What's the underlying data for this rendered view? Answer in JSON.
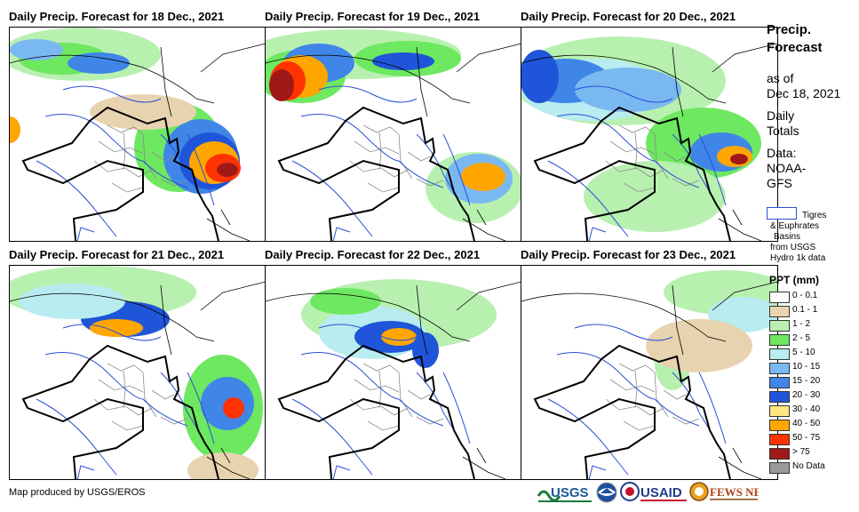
{
  "panels": [
    {
      "title": "Daily Precip. Forecast for 18 Dec., 2021"
    },
    {
      "title": "Daily Precip. Forecast for 19 Dec., 2021"
    },
    {
      "title": "Daily Precip. Forecast for 20 Dec., 2021"
    },
    {
      "title": "Daily Precip. Forecast for 21 Dec., 2021"
    },
    {
      "title": "Daily Precip. Forecast for 22 Dec., 2021"
    },
    {
      "title": "Daily Precip. Forecast for 23 Dec., 2021"
    }
  ],
  "sidebar": {
    "title_line1": "Precip.",
    "title_line2": "Forecast",
    "asof_line1": "as of",
    "asof_line2": "Dec 18, 2021",
    "totals_line1": "Daily",
    "totals_line2": "Totals",
    "data_line1": "Data:",
    "data_line2": "NOAA-",
    "data_line3": "GFS"
  },
  "basin_legend": {
    "line1": "Tigres",
    "line2": "& Euphrates",
    "line3": "Basins",
    "line4": "from USGS",
    "line5": "Hydro 1k data",
    "color": "#2b4fd6"
  },
  "legend": {
    "title": "PPT (mm)",
    "items": [
      {
        "label": "0 - 0.1",
        "color": "#ffffff"
      },
      {
        "label": "0.1 - 1",
        "color": "#e8d3b0"
      },
      {
        "label": "1 - 2",
        "color": "#b8f0b0"
      },
      {
        "label": "2 - 5",
        "color": "#6ee860"
      },
      {
        "label": "5 - 10",
        "color": "#b8ecf0"
      },
      {
        "label": "10 - 15",
        "color": "#7ab8f2"
      },
      {
        "label": "15 - 20",
        "color": "#3f86e8"
      },
      {
        "label": "20 - 30",
        "color": "#1f55d8"
      },
      {
        "label": "30 - 40",
        "color": "#ffe880"
      },
      {
        "label": "40 - 50",
        "color": "#ffa600"
      },
      {
        "label": "50 - 75",
        "color": "#ff3300"
      },
      {
        "label": "> 75",
        "color": "#a01818"
      },
      {
        "label": "No Data",
        "color": "#9a9a9a"
      }
    ]
  },
  "credit": "Map produced by USGS/EROS",
  "logos": {
    "usgs": "USGS",
    "usaid": "USAID",
    "fewsnet": "FEWS NET"
  }
}
